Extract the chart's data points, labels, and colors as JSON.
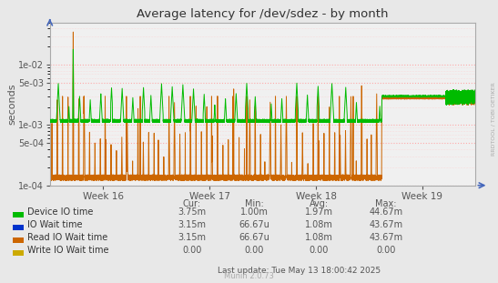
{
  "title": "Average latency for /dev/sdez - by month",
  "ylabel": "seconds",
  "bg_color": "#e8e8e8",
  "plot_bg_color": "#f0f0f0",
  "ylim_min": 0.0001,
  "ylim_max": 0.05,
  "week_labels": [
    "Week 16",
    "Week 17",
    "Week 18",
    "Week 19"
  ],
  "legend_entries": [
    {
      "label": "Device IO time",
      "color": "#00bb00"
    },
    {
      "label": "IO Wait time",
      "color": "#0033cc"
    },
    {
      "label": "Read IO Wait time",
      "color": "#cc6600"
    },
    {
      "label": "Write IO Wait time",
      "color": "#ccaa00"
    }
  ],
  "table_headers": [
    "Cur:",
    "Min:",
    "Avg:",
    "Max:"
  ],
  "table_data": [
    [
      "3.75m",
      "1.00m",
      "1.97m",
      "44.67m"
    ],
    [
      "3.15m",
      "66.67u",
      "1.08m",
      "43.67m"
    ],
    [
      "3.15m",
      "66.67u",
      "1.08m",
      "43.67m"
    ],
    [
      "0.00",
      "0.00",
      "0.00",
      "0.00"
    ]
  ],
  "watermark": "RRDTOOL / TOBI OETIKER",
  "footer": "Munin 2.0.73",
  "last_update": "Last update: Tue May 13 18:00:42 2025"
}
